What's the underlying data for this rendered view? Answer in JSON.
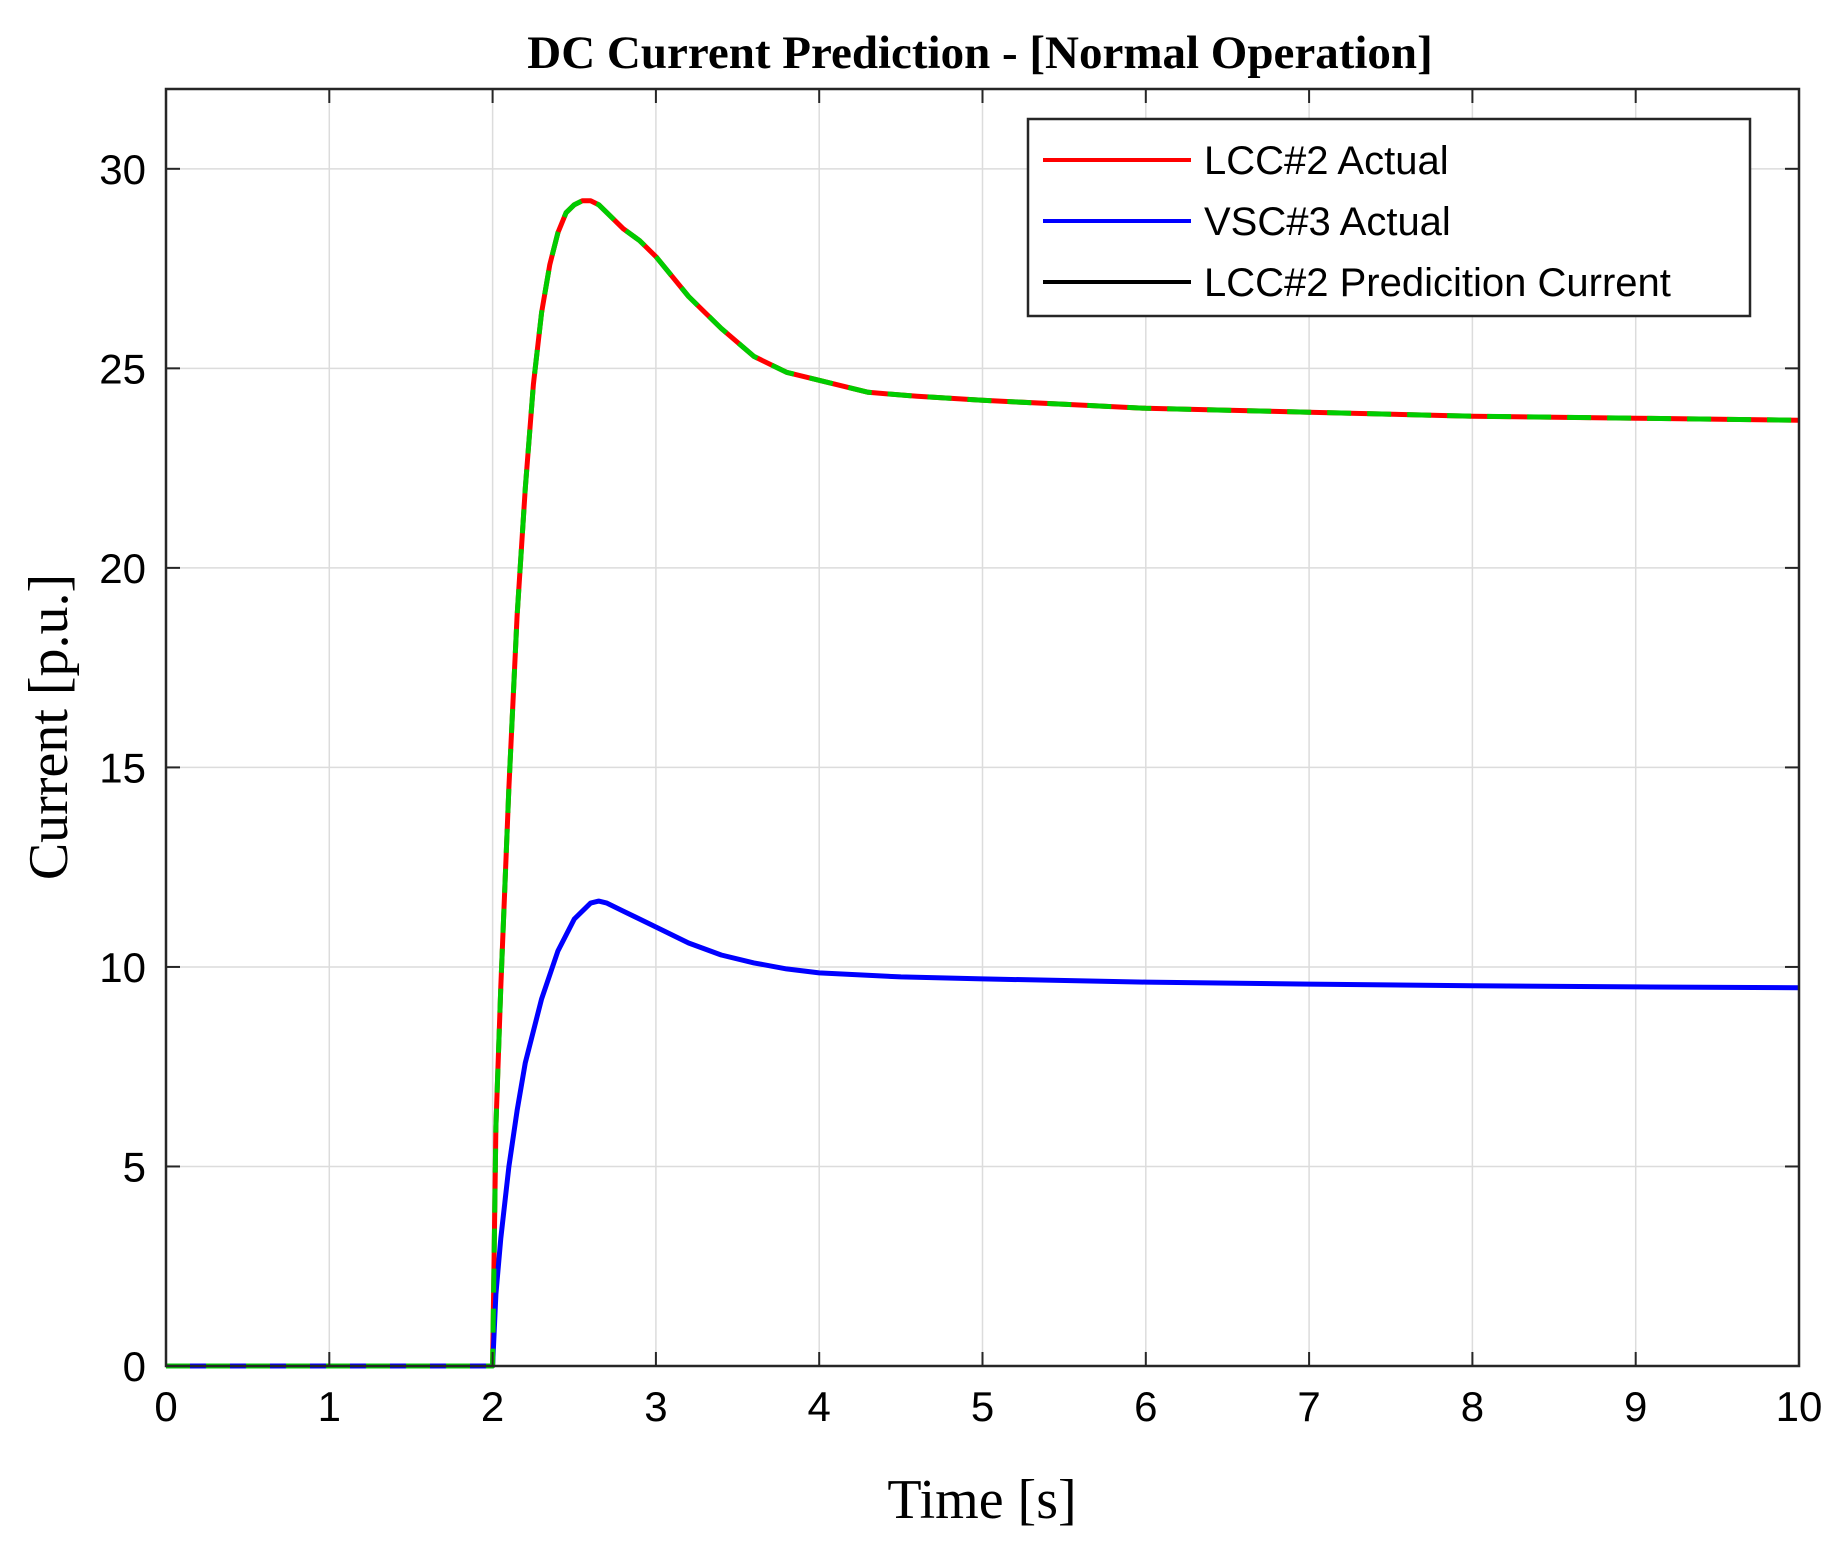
{
  "chart_data": {
    "type": "line",
    "title": "DC Current Prediction - [Normal Operation]",
    "xlabel": "Time [s]",
    "ylabel": "Current [p.u.]",
    "xlim": [
      0,
      10
    ],
    "ylim": [
      0,
      32
    ],
    "xticks": [
      0,
      1,
      2,
      3,
      4,
      5,
      6,
      7,
      8,
      9,
      10
    ],
    "yticks": [
      0,
      5,
      10,
      15,
      20,
      25,
      30
    ],
    "grid": true,
    "legend_position": "top-right",
    "series": [
      {
        "name": "LCC#2 Actual",
        "color": "#ff0000",
        "style": "solid",
        "x": [
          0,
          2.0,
          2.02,
          2.05,
          2.1,
          2.15,
          2.2,
          2.25,
          2.3,
          2.35,
          2.4,
          2.45,
          2.5,
          2.55,
          2.6,
          2.65,
          2.7,
          2.8,
          2.9,
          3.0,
          3.2,
          3.4,
          3.6,
          3.8,
          4.0,
          4.3,
          4.6,
          5.0,
          5.5,
          6.0,
          7.0,
          8.0,
          9.0,
          10.0
        ],
        "y": [
          0,
          0,
          6.0,
          9.5,
          14.5,
          18.8,
          22.0,
          24.6,
          26.4,
          27.6,
          28.4,
          28.9,
          29.1,
          29.2,
          29.2,
          29.1,
          28.9,
          28.5,
          28.2,
          27.8,
          26.8,
          26.0,
          25.3,
          24.9,
          24.7,
          24.4,
          24.3,
          24.2,
          24.1,
          24.0,
          23.9,
          23.8,
          23.75,
          23.7
        ]
      },
      {
        "name": "VSC#3 Actual",
        "color": "#0000ff",
        "style": "solid",
        "x": [
          0,
          2.0,
          2.02,
          2.05,
          2.1,
          2.15,
          2.2,
          2.3,
          2.4,
          2.5,
          2.6,
          2.65,
          2.7,
          2.8,
          3.0,
          3.2,
          3.4,
          3.6,
          3.8,
          4.0,
          4.5,
          5.0,
          6.0,
          7.0,
          8.0,
          9.0,
          10.0
        ],
        "y": [
          0,
          0,
          1.8,
          3.2,
          5.0,
          6.4,
          7.6,
          9.2,
          10.4,
          11.2,
          11.6,
          11.65,
          11.6,
          11.4,
          11.0,
          10.6,
          10.3,
          10.1,
          9.95,
          9.85,
          9.75,
          9.7,
          9.62,
          9.57,
          9.53,
          9.5,
          9.48
        ]
      },
      {
        "name": "LCC#2 Predicition Current",
        "color": "#00cc00",
        "style": "dashed",
        "x": [
          0,
          2.0,
          2.02,
          2.05,
          2.1,
          2.15,
          2.2,
          2.25,
          2.3,
          2.35,
          2.4,
          2.45,
          2.5,
          2.55,
          2.6,
          2.65,
          2.7,
          2.8,
          2.9,
          3.0,
          3.2,
          3.4,
          3.6,
          3.8,
          4.0,
          4.3,
          4.6,
          5.0,
          5.5,
          6.0,
          7.0,
          8.0,
          9.0,
          10.0
        ],
        "y": [
          0,
          0,
          6.0,
          9.5,
          14.5,
          18.8,
          22.0,
          24.6,
          26.4,
          27.6,
          28.4,
          28.9,
          29.1,
          29.2,
          29.2,
          29.1,
          28.9,
          28.5,
          28.2,
          27.8,
          26.8,
          26.0,
          25.3,
          24.9,
          24.7,
          24.4,
          24.3,
          24.2,
          24.1,
          24.0,
          23.9,
          23.8,
          23.75,
          23.7
        ]
      }
    ],
    "legend": [
      {
        "label": "LCC#2 Actual",
        "color": "#ff0000"
      },
      {
        "label": "VSC#3 Actual",
        "color": "#0000ff"
      },
      {
        "label": "LCC#2 Predicition Current",
        "color": "#000000"
      }
    ]
  }
}
